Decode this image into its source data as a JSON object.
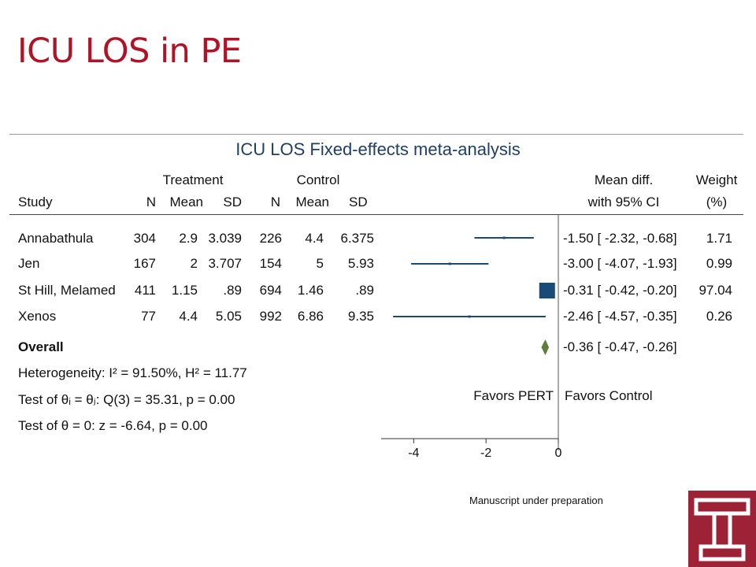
{
  "slide": {
    "title": "ICU LOS in PE",
    "footnote": "Manuscript under preparation"
  },
  "figure": {
    "title": "ICU LOS Fixed-effects meta-analysis",
    "group_headers": {
      "treatment": "Treatment",
      "control": "Control",
      "mean_diff": "Mean diff.",
      "weight": "Weight"
    },
    "col_headers": {
      "study": "Study",
      "n": "N",
      "mean": "Mean",
      "sd": "SD",
      "ci": "with 95% CI",
      "weight_unit": "(%)"
    },
    "overall_label": "Overall",
    "overall_ci_text": "-0.36 [ -0.47,  -0.26]",
    "stats": {
      "heterogeneity": "Heterogeneity: I² = 91.50%, H² = 11.77",
      "test_equal": "Test of θᵢ = θⱼ: Q(3) = 35.31, p = 0.00",
      "test_zero": "Test of θ = 0: z = -6.64, p = 0.00"
    },
    "favors_left": "Favors PERT",
    "favors_right": "Favors Control"
  },
  "chart_data": {
    "type": "forest",
    "title": "ICU LOS Fixed-effects meta-analysis",
    "xlim": [
      -4.9,
      0
    ],
    "xticks": [
      "-4",
      "-2",
      "0"
    ],
    "reference_line": 0,
    "colors": {
      "study": "#1a4a78",
      "overall": "#5d7d3a"
    },
    "studies": [
      {
        "name": "Annabathula",
        "t_n": "304",
        "t_mean": "2.9",
        "t_sd": "3.039",
        "c_n": "226",
        "c_mean": "4.4",
        "c_sd": "6.375",
        "md": -1.5,
        "lo": -2.32,
        "hi": -0.68,
        "ci_text": "-1.50 [ -2.32,  -0.68]",
        "weight": 1.71,
        "weight_text": "1.71"
      },
      {
        "name": "Jen",
        "t_n": "167",
        "t_mean": "2",
        "t_sd": "3.707",
        "c_n": "154",
        "c_mean": "5",
        "c_sd": "5.93",
        "md": -3.0,
        "lo": -4.07,
        "hi": -1.93,
        "ci_text": "-3.00 [ -4.07,  -1.93]",
        "weight": 0.99,
        "weight_text": "0.99"
      },
      {
        "name": "St Hill, Melamed",
        "t_n": "411",
        "t_mean": "1.15",
        "t_sd": ".89",
        "c_n": "694",
        "c_mean": "1.46",
        "c_sd": ".89",
        "md": -0.31,
        "lo": -0.42,
        "hi": -0.2,
        "ci_text": "-0.31 [ -0.42,  -0.20]",
        "weight": 97.04,
        "weight_text": "97.04"
      },
      {
        "name": "Xenos",
        "t_n": "77",
        "t_mean": "4.4",
        "t_sd": "5.05",
        "c_n": "992",
        "c_mean": "6.86",
        "c_sd": "9.35",
        "md": -2.46,
        "lo": -4.57,
        "hi": -0.35,
        "ci_text": "-2.46 [ -4.57,  -0.35]",
        "weight": 0.26,
        "weight_text": "0.26"
      }
    ],
    "overall": {
      "md": -0.36,
      "lo": -0.47,
      "hi": -0.26
    }
  },
  "logo_letter": "T"
}
